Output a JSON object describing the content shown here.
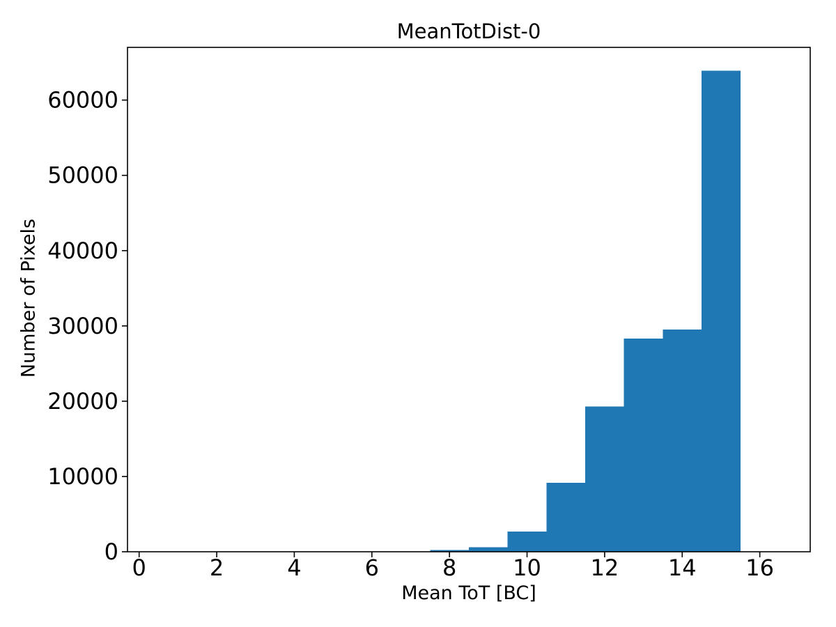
{
  "figure": {
    "background": "#ffffff",
    "axes_color": "#000000"
  },
  "chart_data": {
    "type": "bar",
    "subtype": "histogram",
    "title": "MeanTotDist-0",
    "xlabel": "Mean ToT [BC]",
    "ylabel": "Number of Pixels",
    "bar_color": "#1f77b4",
    "grid": false,
    "legend_position": "none",
    "bin_edges": [
      0.5,
      1.5,
      2.5,
      3.5,
      4.5,
      5.5,
      6.5,
      7.5,
      8.5,
      9.5,
      10.5,
      11.5,
      12.5,
      13.5,
      14.5,
      15.5,
      16.5
    ],
    "counts": [
      0,
      0,
      0,
      0,
      0,
      0,
      0,
      250,
      600,
      2700,
      9150,
      19300,
      28300,
      29500,
      63900,
      0
    ],
    "xlim": [
      -0.3,
      17.3
    ],
    "ylim": [
      0,
      67000
    ],
    "xticks": [
      0,
      2,
      4,
      6,
      8,
      10,
      12,
      14,
      16
    ],
    "yticks": [
      0,
      10000,
      20000,
      30000,
      40000,
      50000,
      60000
    ]
  }
}
